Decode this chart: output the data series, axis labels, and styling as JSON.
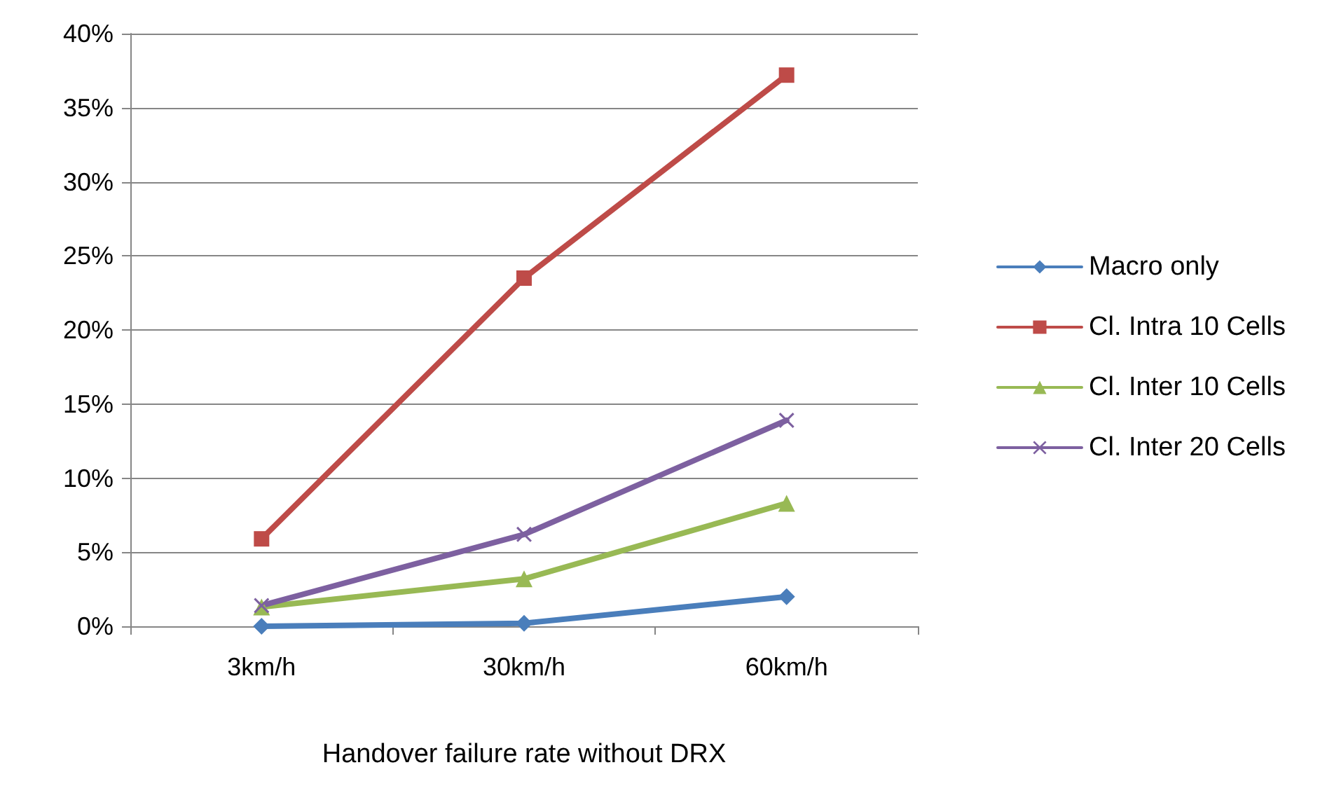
{
  "chart_data": {
    "type": "line",
    "xlabel": "Handover failure rate without DRX",
    "categories": [
      "3km/h",
      "30km/h",
      "60km/h"
    ],
    "series": [
      {
        "name": "Macro only",
        "color": "#4a7ebb",
        "marker": "diamond",
        "values": [
          0,
          0.2,
          2.0
        ]
      },
      {
        "name": "Cl. Intra 10 Cells",
        "color": "#be4b48",
        "marker": "square",
        "values": [
          5.9,
          23.5,
          37.2
        ]
      },
      {
        "name": "Cl. Inter 10 Cells",
        "color": "#98b954",
        "marker": "triangle",
        "values": [
          1.3,
          3.2,
          8.3
        ]
      },
      {
        "name": "Cl. Inter 20 Cells",
        "color": "#7d60a0",
        "marker": "cross",
        "values": [
          1.4,
          6.2,
          13.9
        ]
      }
    ],
    "ylim": [
      0,
      40
    ],
    "yticks": [
      {
        "value": 0,
        "label": "0%"
      },
      {
        "value": 5,
        "label": "5%"
      },
      {
        "value": 10,
        "label": "10%"
      },
      {
        "value": 15,
        "label": "15%"
      },
      {
        "value": 20,
        "label": "20%"
      },
      {
        "value": 25,
        "label": "25%"
      },
      {
        "value": 30,
        "label": "30%"
      },
      {
        "value": 35,
        "label": "35%"
      },
      {
        "value": 40,
        "label": "40%"
      }
    ],
    "grid": "y",
    "legend": "right",
    "line_style": "solid"
  }
}
